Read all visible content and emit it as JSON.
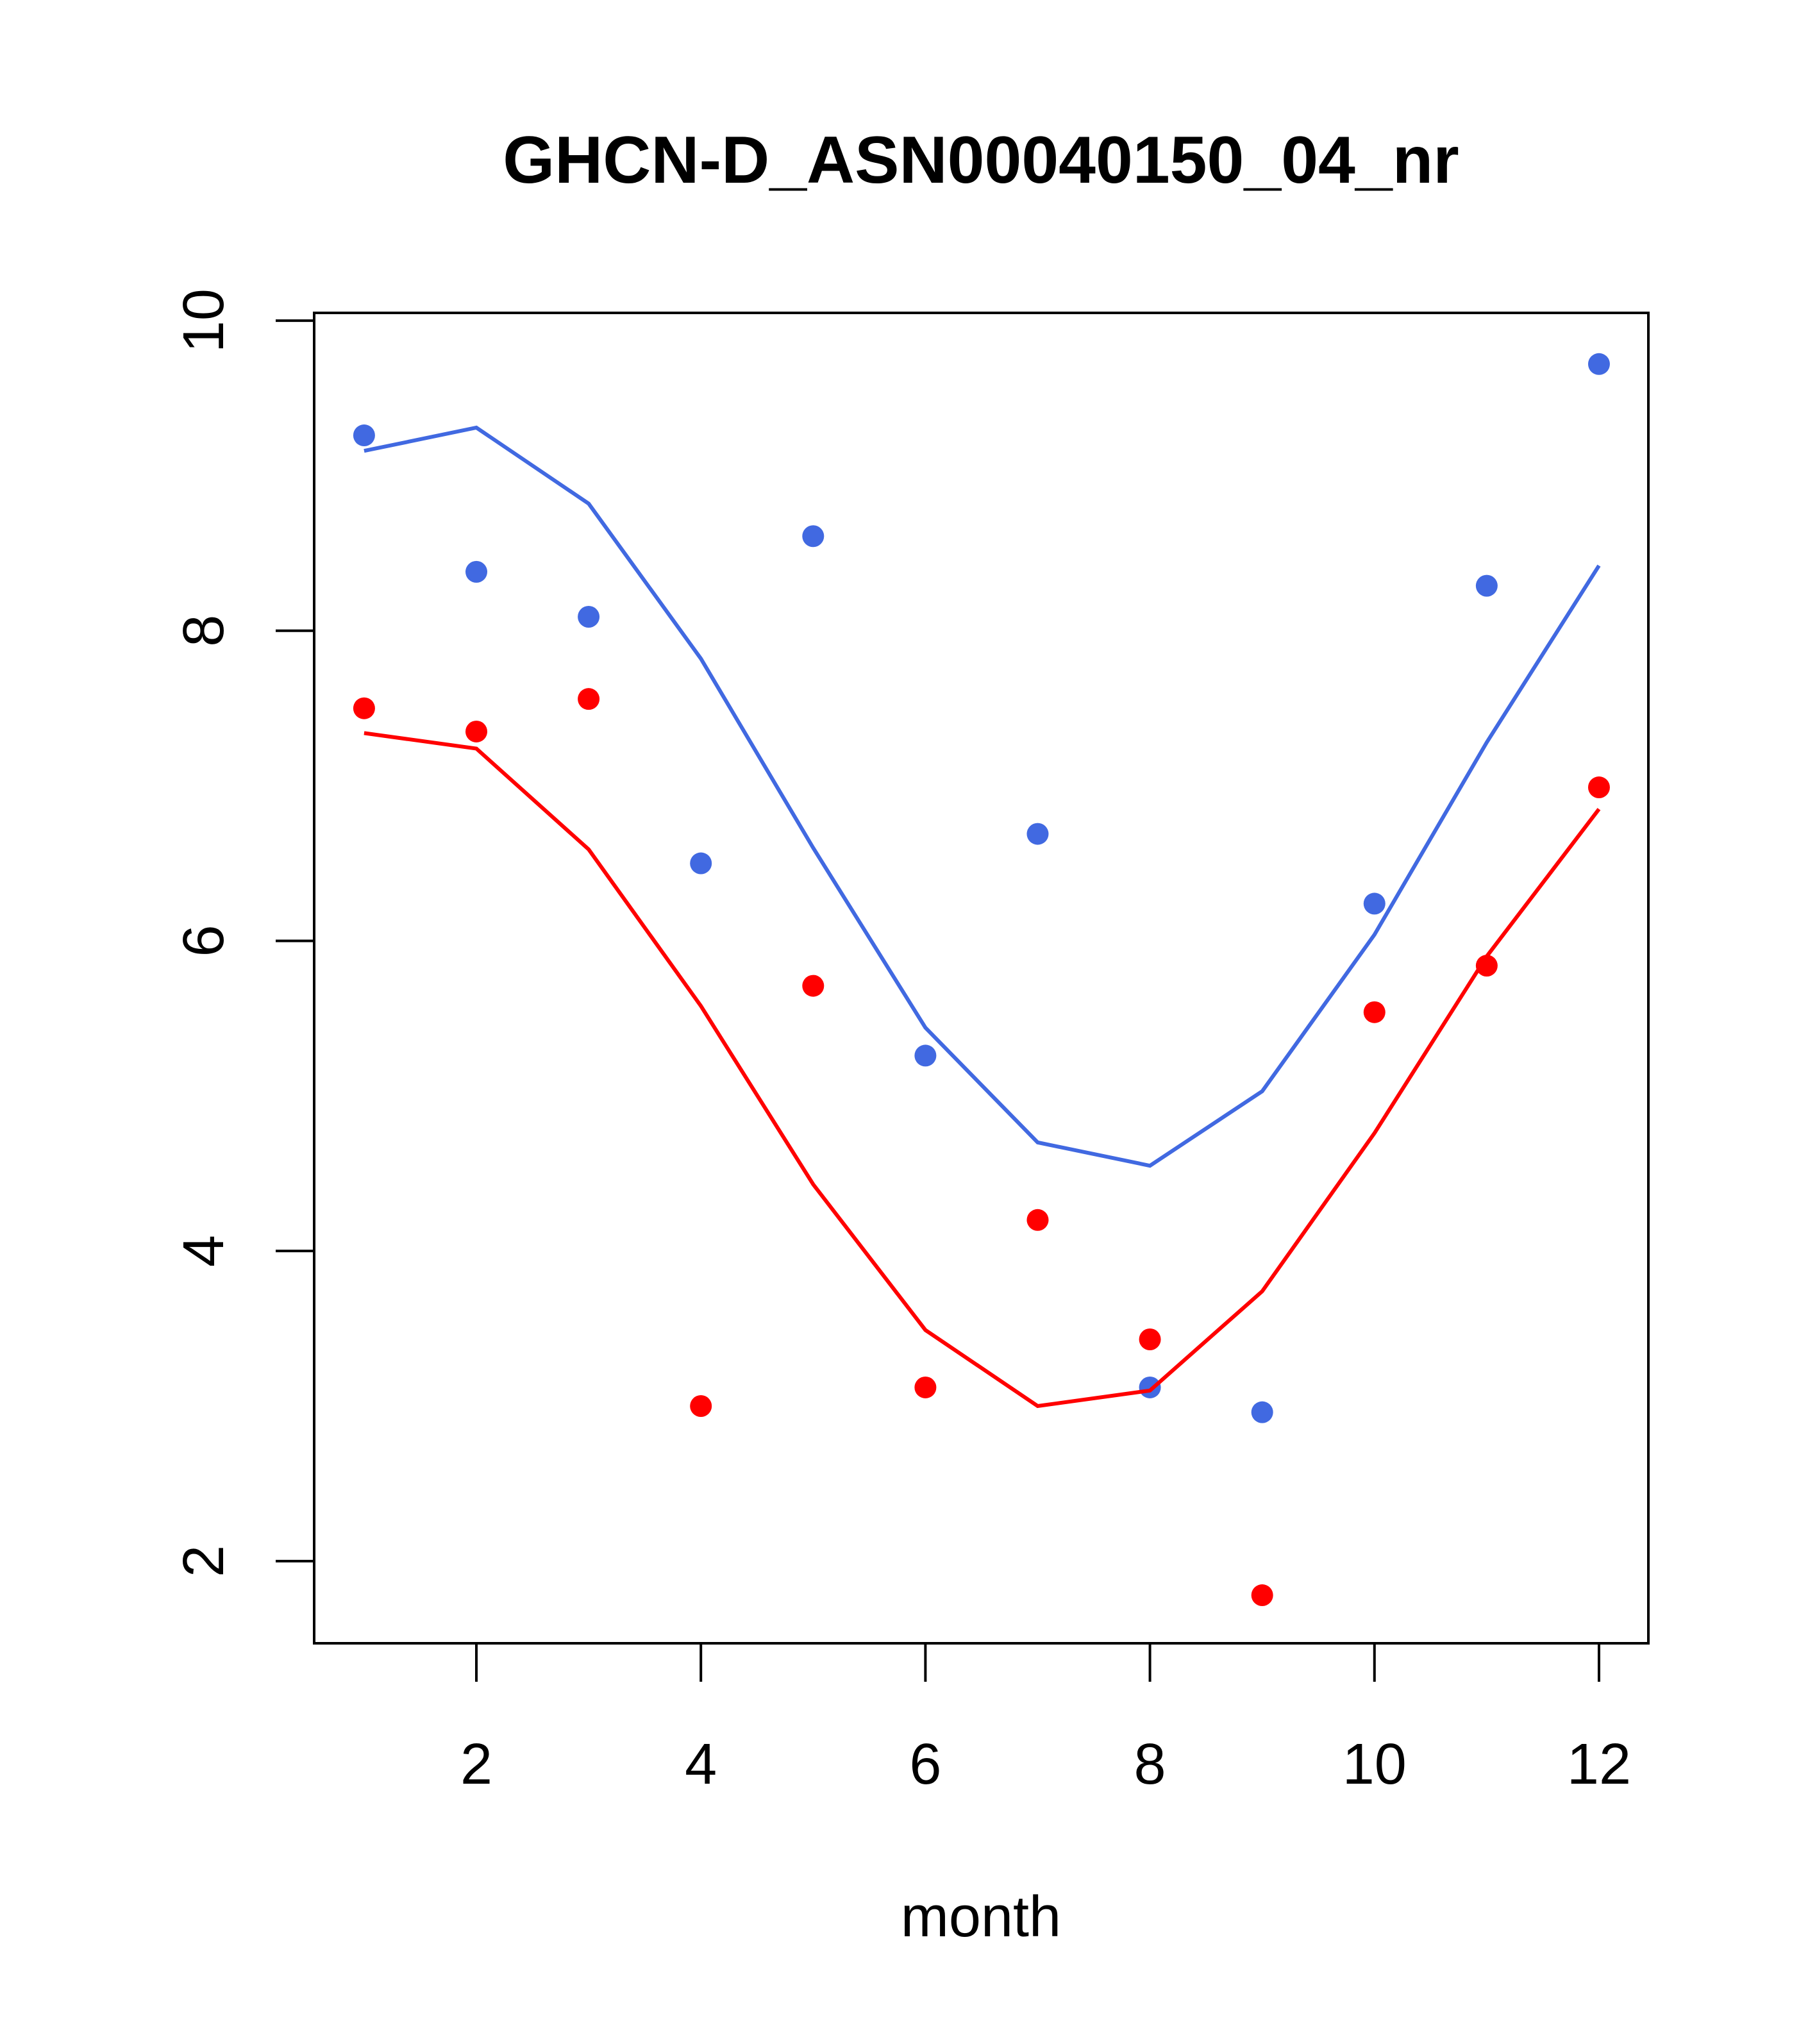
{
  "chart_data": {
    "type": "scatter",
    "title": "GHCN-D_ASN00040150_04_nr",
    "xlabel": "month",
    "ylabel": "",
    "xlim": [
      0.555,
      12.44
    ],
    "ylim": [
      1.47,
      10.05
    ],
    "xticks": [
      2,
      4,
      6,
      8,
      10,
      12
    ],
    "xtick_labels": [
      "2",
      "4",
      "6",
      "8",
      "10",
      "12"
    ],
    "yticks": [
      2,
      4,
      6,
      8,
      10
    ],
    "ytick_labels": [
      "2",
      "4",
      "6",
      "8",
      "10"
    ],
    "grid": false,
    "x": [
      1,
      2,
      3,
      4,
      5,
      6,
      7,
      8,
      9,
      10,
      11,
      12
    ],
    "series": [
      {
        "name": "blue points",
        "kind": "points",
        "color": "#4169E1",
        "values": [
          9.26,
          8.38,
          8.09,
          6.5,
          8.61,
          5.26,
          6.69,
          3.12,
          2.96,
          6.24,
          8.29,
          9.72
        ]
      },
      {
        "name": "blue line",
        "kind": "line",
        "color": "#4169E1",
        "values": [
          9.16,
          9.31,
          8.82,
          7.82,
          6.6,
          5.44,
          4.7,
          4.55,
          5.03,
          6.04,
          7.28,
          8.42
        ]
      },
      {
        "name": "red points",
        "kind": "points",
        "color": "#FF0000",
        "values": [
          7.5,
          7.35,
          7.56,
          3.0,
          5.71,
          3.12,
          4.2,
          3.43,
          1.78,
          5.54,
          5.84,
          6.99
        ]
      },
      {
        "name": "red line",
        "kind": "line",
        "color": "#FF0000",
        "values": [
          7.34,
          7.24,
          6.59,
          5.58,
          4.43,
          3.49,
          3.0,
          3.1,
          3.74,
          4.76,
          5.9,
          6.85
        ]
      }
    ]
  }
}
